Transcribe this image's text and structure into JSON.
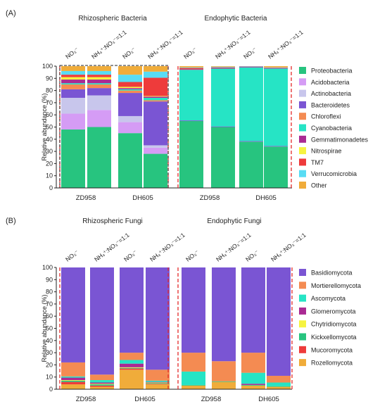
{
  "chart_data": [
    {
      "type": "bar",
      "stacked": true,
      "panel_label": "(A)",
      "group_titles": [
        "Rhizospheric Bacteria",
        "Endophytic Bacteria"
      ],
      "condition_labels": [
        "NO₃⁻",
        "NH₄⁺:NO₃⁻=1:1",
        "NO₃⁻",
        "NH₄⁺:NO₃⁻=1:1"
      ],
      "site_labels": [
        "ZD958",
        "DH605"
      ],
      "ylabel": "Relative abundance (%)",
      "ylim": [
        0,
        100
      ],
      "yticks": [
        "0",
        "10",
        "20",
        "30",
        "40",
        "50",
        "60",
        "70",
        "80",
        "90",
        "100"
      ],
      "legend_position": "right",
      "categories": [
        "Rhizo ZD958 NO3",
        "Rhizo ZD958 NH4:NO3",
        "Rhizo DH605 NO3",
        "Rhizo DH605 NH4:NO3",
        "Endo ZD958 NO3",
        "Endo ZD958 NH4:NO3",
        "Endo DH605 NO3",
        "Endo DH605 NH4:NO3"
      ],
      "series": [
        {
          "name": "Proteobacteria",
          "color": "#27c47f",
          "values": [
            48,
            50,
            45,
            28,
            55,
            50,
            38,
            34
          ]
        },
        {
          "name": "Acidobacteria",
          "color": "#d59cf5",
          "values": [
            13,
            14,
            9,
            5,
            0,
            0,
            0,
            0
          ]
        },
        {
          "name": "Actinobacteria",
          "color": "#c8c6ec",
          "values": [
            13,
            12,
            5,
            2,
            0,
            0,
            0,
            0
          ]
        },
        {
          "name": "Bacteroidetes",
          "color": "#7a55d3",
          "values": [
            7,
            6,
            19,
            36,
            0.5,
            0.5,
            0.5,
            0.5
          ]
        },
        {
          "name": "Chloroflexi",
          "color": "#f48b52",
          "values": [
            4,
            3,
            2,
            1,
            0,
            0,
            0,
            0
          ]
        },
        {
          "name": "Cyanobacteria",
          "color": "#26e4c5",
          "values": [
            1,
            1,
            1,
            2,
            41.5,
            47.5,
            60.5,
            63.5
          ]
        },
        {
          "name": "Gemmatimonadetes",
          "color": "#aa2a93",
          "values": [
            3,
            3,
            1,
            1,
            0.5,
            0.5,
            0.5,
            0.5
          ]
        },
        {
          "name": "Nitrospirae",
          "color": "#f6f340",
          "values": [
            2,
            2,
            1,
            0.5,
            0,
            0,
            0,
            0
          ]
        },
        {
          "name": "TM7",
          "color": "#ee3b3b",
          "values": [
            2,
            2,
            4,
            15,
            1,
            0.5,
            0.2,
            0.2
          ]
        },
        {
          "name": "Verrucomicrobia",
          "color": "#58dcf4",
          "values": [
            3,
            3,
            6,
            5,
            0.5,
            0.5,
            0.3,
            0.3
          ]
        },
        {
          "name": "Other",
          "color": "#f0ac3a",
          "values": [
            4,
            4,
            7,
            4.5,
            1,
            0.5,
            0,
            1
          ]
        }
      ]
    },
    {
      "type": "bar",
      "stacked": true,
      "panel_label": "(B)",
      "group_titles": [
        "Rhizospheric Fungi",
        "Endophytic Fungi"
      ],
      "condition_labels": [
        "NO₃⁻",
        "NH₄⁺:NO₃⁻=1:1",
        "NO₃⁻",
        "NH₄⁺:NO₃⁻=1:1"
      ],
      "site_labels": [
        "ZD958",
        "DH605"
      ],
      "ylabel": "Relative abundance (%)",
      "ylim": [
        0,
        100
      ],
      "yticks": [
        "0",
        "10",
        "20",
        "30",
        "40",
        "50",
        "60",
        "70",
        "80",
        "90",
        "100"
      ],
      "legend_position": "right",
      "categories": [
        "Rhizo ZD958 NO3",
        "Rhizo ZD958 NH4:NO3",
        "Rhizo DH605 NO3",
        "Rhizo DH605 NH4:NO3",
        "Endo ZD958 NO3",
        "Endo ZD958 NH4:NO3",
        "Endo DH605 NO3",
        "Endo DH605 NH4:NO3"
      ],
      "series": [
        {
          "name": "Rozellomycota",
          "color": "#f0ac3a",
          "values": [
            4,
            2,
            16,
            4,
            3,
            6,
            3,
            2
          ]
        },
        {
          "name": "Mucoromycota",
          "color": "#ee3b3b",
          "values": [
            2,
            1,
            1,
            0.5,
            0,
            0,
            0,
            0
          ]
        },
        {
          "name": "Kickxellomycota",
          "color": "#27c47f",
          "values": [
            1,
            1,
            0.5,
            0.5,
            0.5,
            0.5,
            0.5,
            0.5
          ]
        },
        {
          "name": "Chytridiomycota",
          "color": "#f6f340",
          "values": [
            0.5,
            0.5,
            0.5,
            0.5,
            0,
            0,
            0,
            0
          ]
        },
        {
          "name": "Glomeromycota",
          "color": "#aa2a93",
          "values": [
            2,
            1,
            3,
            0.5,
            0,
            0,
            1,
            0
          ]
        },
        {
          "name": "Ascomycota",
          "color": "#26e4c5",
          "values": [
            1,
            2,
            3,
            1,
            11,
            0,
            9,
            3
          ]
        },
        {
          "name": "Mortierellomycota",
          "color": "#f48b52",
          "values": [
            11.5,
            4.5,
            6,
            9,
            15.5,
            16.5,
            16.5,
            5.5
          ]
        },
        {
          "name": "Basidiomycota",
          "color": "#7a55d3",
          "values": [
            78,
            88,
            70,
            84,
            70,
            77,
            70,
            89
          ]
        }
      ],
      "legend_order": [
        "Basidiomycota",
        "Mortierellomycota",
        "Ascomycota",
        "Glomeromycota",
        "Chytridiomycota",
        "Kickxellomycota",
        "Mucoromycota",
        "Rozellomycota"
      ]
    }
  ]
}
